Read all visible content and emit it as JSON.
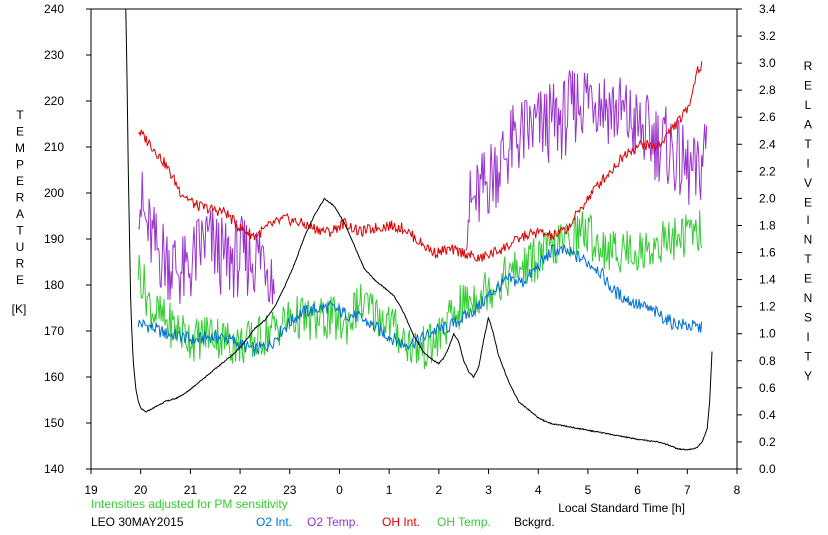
{
  "chart_data": {
    "type": "line",
    "note_text": "Intensities adjusted for PM sensitivity",
    "station_date": "LEO 30MAY2015",
    "xlabel": "Local Standard Time [h]",
    "ylabel_left": "TEMPERATURE",
    "ylabel_left_unit": "[K]",
    "ylabel_right_word1": "RELATIVE",
    "ylabel_right_word2": "INTENSITY",
    "grid": false,
    "x_ticks": [
      {
        "v": 19,
        "label": "19"
      },
      {
        "v": 20,
        "label": "20"
      },
      {
        "v": 21,
        "label": "21"
      },
      {
        "v": 22,
        "label": "22"
      },
      {
        "v": 23,
        "label": "23"
      },
      {
        "v": 24,
        "label": "0"
      },
      {
        "v": 25,
        "label": "1"
      },
      {
        "v": 26,
        "label": "2"
      },
      {
        "v": 27,
        "label": "3"
      },
      {
        "v": 28,
        "label": "4"
      },
      {
        "v": 29,
        "label": "5"
      },
      {
        "v": 30,
        "label": "6"
      },
      {
        "v": 31,
        "label": "7"
      },
      {
        "v": 32,
        "label": "8"
      }
    ],
    "xlim": [
      19,
      32
    ],
    "left_axis": {
      "ylim": [
        140,
        240
      ],
      "ticks": [
        "140",
        "150",
        "160",
        "170",
        "180",
        "190",
        "200",
        "210",
        "220",
        "230",
        "240"
      ]
    },
    "right_axis": {
      "ylim": [
        0.0,
        3.4
      ],
      "ticks": [
        "0.0",
        "0.2",
        "0.4",
        "0.6",
        "0.8",
        "1.0",
        "1.2",
        "1.4",
        "1.6",
        "1.8",
        "2.0",
        "2.2",
        "2.4",
        "2.6",
        "2.8",
        "3.0",
        "3.2",
        "3.4"
      ]
    },
    "series": [
      {
        "name": "O2 Int.",
        "color": "#0070d0",
        "axis": "right",
        "x": [
          19.95,
          20.2,
          20.5,
          20.8,
          21.1,
          21.4,
          21.7,
          22.0,
          22.3,
          22.6,
          22.9,
          23.2,
          23.5,
          23.8,
          24.1,
          24.4,
          24.7,
          25.0,
          25.3,
          25.6,
          25.9,
          26.2,
          26.5,
          26.8,
          27.1,
          27.4,
          27.7,
          28.0,
          28.3,
          28.6,
          28.9,
          29.2,
          29.5,
          29.8,
          30.1,
          30.4,
          30.7,
          31.0,
          31.3
        ],
        "y": [
          1.08,
          1.05,
          1.0,
          0.98,
          0.95,
          0.98,
          0.97,
          0.92,
          0.88,
          0.92,
          1.05,
          1.15,
          1.18,
          1.2,
          1.15,
          1.12,
          1.05,
          0.98,
          0.92,
          0.95,
          1.02,
          1.05,
          1.12,
          1.2,
          1.32,
          1.4,
          1.38,
          1.5,
          1.62,
          1.6,
          1.55,
          1.48,
          1.32,
          1.25,
          1.2,
          1.15,
          1.08,
          1.06,
          1.04
        ]
      },
      {
        "name": "O2 Temp.",
        "color": "#9932cc",
        "axis": "left",
        "segments": [
          {
            "x": [
              19.95,
              20.1,
              20.3,
              20.5,
              20.7,
              20.9,
              21.1,
              21.3,
              21.5,
              21.7,
              21.9,
              22.1,
              22.3,
              22.5,
              22.7
            ],
            "y": [
              201,
              193,
              188,
              186,
              184,
              182,
              186,
              190,
              188,
              185,
              186,
              186,
              186,
              187,
              180
            ]
          },
          {
            "x": [
              26.55,
              26.8,
              27.0,
              27.3,
              27.6,
              27.9,
              28.2,
              28.5,
              28.8,
              29.1,
              29.4,
              29.7,
              30.0,
              30.3,
              30.6,
              30.9,
              31.2,
              31.4
            ],
            "y": [
              196,
              199,
              203,
              208,
              212,
              214,
              215,
              216,
              220,
              222,
              219,
              217,
              214,
              212,
              210,
              206,
              203,
              212
            ]
          }
        ]
      },
      {
        "name": "OH Int.",
        "color": "#dd0000",
        "axis": "right",
        "x": [
          19.95,
          20.2,
          20.5,
          20.8,
          21.1,
          21.4,
          21.7,
          22.0,
          22.3,
          22.6,
          22.9,
          23.2,
          23.5,
          23.8,
          24.1,
          24.4,
          24.7,
          25.0,
          25.3,
          25.6,
          25.9,
          26.2,
          26.5,
          26.8,
          27.1,
          27.4,
          27.7,
          28.0,
          28.3,
          28.6,
          28.9,
          29.2,
          29.5,
          29.8,
          30.1,
          30.4,
          30.7,
          31.0,
          31.2,
          31.3
        ],
        "y": [
          2.5,
          2.4,
          2.25,
          2.05,
          1.95,
          1.92,
          1.9,
          1.78,
          1.72,
          1.8,
          1.85,
          1.82,
          1.78,
          1.75,
          1.82,
          1.75,
          1.78,
          1.8,
          1.78,
          1.68,
          1.6,
          1.62,
          1.6,
          1.55,
          1.6,
          1.65,
          1.72,
          1.75,
          1.72,
          1.78,
          1.95,
          2.1,
          2.22,
          2.35,
          2.4,
          2.38,
          2.52,
          2.65,
          2.95,
          2.98
        ]
      },
      {
        "name": "OH Temp.",
        "color": "#33cc33",
        "axis": "left",
        "x": [
          19.95,
          20.2,
          20.5,
          20.8,
          21.1,
          21.4,
          21.7,
          22.0,
          22.3,
          22.6,
          22.9,
          23.2,
          23.5,
          23.8,
          24.1,
          24.4,
          24.7,
          25.0,
          25.3,
          25.6,
          25.9,
          26.2,
          26.5,
          26.8,
          27.1,
          27.4,
          27.7,
          28.0,
          28.3,
          28.6,
          28.9,
          29.2,
          29.5,
          29.8,
          30.1,
          30.4,
          30.7,
          31.0,
          31.3
        ],
        "y": [
          184,
          175,
          172,
          170,
          168,
          170,
          168,
          167,
          168,
          170,
          172,
          173,
          172,
          173,
          171,
          176,
          174,
          172,
          168,
          166,
          167,
          172,
          176,
          178,
          180,
          182,
          184,
          186,
          188,
          190,
          192,
          189,
          187,
          188,
          187,
          189,
          190,
          191,
          192
        ]
      },
      {
        "name": "Bckgrd.",
        "color": "#000000",
        "axis": "right",
        "x": [
          19.7,
          19.72,
          19.75,
          19.8,
          19.85,
          19.9,
          19.95,
          20.0,
          20.1,
          20.3,
          20.5,
          20.7,
          20.9,
          21.1,
          21.3,
          21.5,
          21.7,
          21.9,
          22.1,
          22.3,
          22.5,
          22.7,
          22.9,
          23.1,
          23.3,
          23.5,
          23.7,
          23.9,
          24.1,
          24.3,
          24.5,
          24.7,
          24.9,
          25.1,
          25.3,
          25.5,
          25.7,
          25.9,
          26.0,
          26.1,
          26.2,
          26.3,
          26.4,
          26.5,
          26.6,
          26.7,
          26.8,
          26.9,
          27.0,
          27.1,
          27.2,
          27.4,
          27.6,
          27.8,
          28.0,
          28.2,
          28.5,
          28.8,
          29.1,
          29.4,
          29.7,
          30.0,
          30.2,
          30.4,
          30.6,
          30.8,
          31.0,
          31.2,
          31.3,
          31.4,
          31.45,
          31.5
        ],
        "y": [
          3.4,
          3.0,
          2.2,
          1.2,
          0.8,
          0.6,
          0.5,
          0.45,
          0.42,
          0.46,
          0.5,
          0.52,
          0.56,
          0.62,
          0.68,
          0.74,
          0.8,
          0.86,
          0.94,
          1.04,
          1.1,
          1.2,
          1.35,
          1.52,
          1.72,
          1.88,
          2.0,
          1.94,
          1.82,
          1.65,
          1.48,
          1.4,
          1.34,
          1.28,
          1.15,
          0.98,
          0.86,
          0.8,
          0.78,
          0.82,
          0.9,
          1.0,
          0.94,
          0.8,
          0.72,
          0.68,
          0.75,
          0.95,
          1.12,
          1.0,
          0.84,
          0.65,
          0.5,
          0.44,
          0.38,
          0.34,
          0.32,
          0.3,
          0.28,
          0.26,
          0.24,
          0.22,
          0.21,
          0.2,
          0.18,
          0.15,
          0.14,
          0.16,
          0.2,
          0.3,
          0.5,
          0.9
        ]
      }
    ]
  }
}
